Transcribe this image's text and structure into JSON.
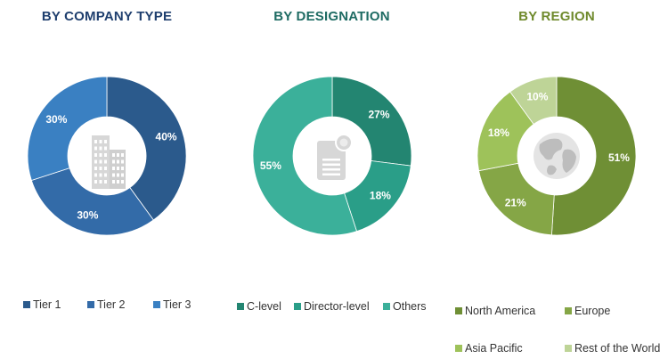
{
  "chart_data": [
    {
      "type": "pie",
      "title": "BY COMPANY TYPE",
      "slices": [
        {
          "label": "Tier 1",
          "value": 40,
          "display": "40%",
          "color": "#2b5a8c"
        },
        {
          "label": "Tier 2",
          "value": 30,
          "display": "30%",
          "color": "#336ba8"
        },
        {
          "label": "Tier 3",
          "value": 30,
          "display": "30%",
          "color": "#3a80c2"
        }
      ],
      "icon": "building-icon",
      "legend": [
        "Tier 1",
        "Tier 2",
        "Tier 3"
      ]
    },
    {
      "type": "pie",
      "title": "BY DESIGNATION",
      "slices": [
        {
          "label": "C-level",
          "value": 27,
          "display": "27%",
          "color": "#238571"
        },
        {
          "label": "Director-level",
          "value": 18,
          "display": "18%",
          "color": "#2a9e88"
        },
        {
          "label": "Others",
          "value": 55,
          "display": "55%",
          "color": "#3bb09a"
        }
      ],
      "icon": "certificate-document-icon",
      "legend": [
        "C-level",
        "Director-level",
        "Others"
      ]
    },
    {
      "type": "pie",
      "title": "BY REGION",
      "slices": [
        {
          "label": "North America",
          "value": 51,
          "display": "51%",
          "color": "#6f8f35"
        },
        {
          "label": "Europe",
          "value": 21,
          "display": "21%",
          "color": "#85a646"
        },
        {
          "label": "Asia Pacific",
          "value": 18,
          "display": "18%",
          "color": "#9ec25a"
        },
        {
          "label": "Rest of the World",
          "value": 10,
          "display": "10%",
          "color": "#bed497"
        }
      ],
      "icon": "globe-icon",
      "legend": [
        "North America",
        "Europe",
        "Asia Pacific",
        "Rest of the World"
      ]
    }
  ]
}
